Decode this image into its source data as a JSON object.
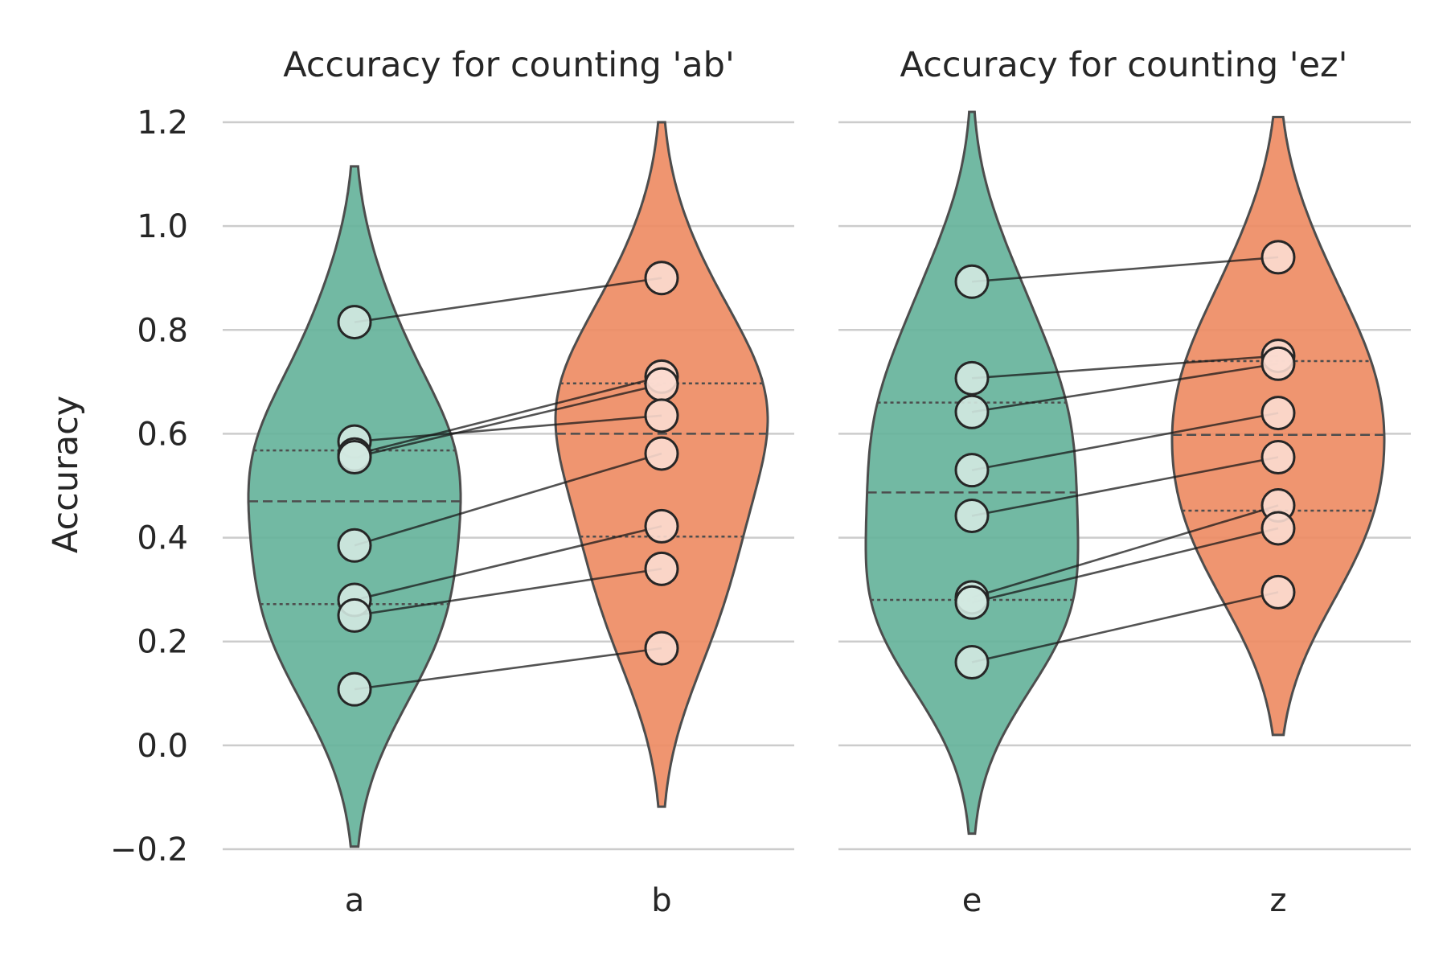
{
  "chart_data": {
    "type": "violin",
    "ylabel": "Accuracy",
    "ylim": [
      -0.2,
      1.2
    ],
    "yticks": [
      -0.2,
      0.0,
      0.2,
      0.4,
      0.6,
      0.8,
      1.0,
      1.2
    ],
    "ytick_labels": [
      "−0.2",
      "0.0",
      "0.2",
      "0.4",
      "0.6",
      "0.8",
      "1.0",
      "1.2"
    ],
    "grid": "horizontal",
    "colors": {
      "left_violin": "#66b39b",
      "right_violin": "#ee8c64",
      "left_point": "#d3e9e1",
      "right_point": "#fbdcd0"
    },
    "panels": [
      {
        "title": "Accuracy for counting 'ab'",
        "categories": [
          "a",
          "b"
        ],
        "series": [
          {
            "category": "a",
            "values": [
              0.815,
              0.585,
              0.56,
              0.555,
              0.385,
              0.28,
              0.25,
              0.108
            ],
            "median": 0.47,
            "q1": 0.272,
            "q3": 0.568,
            "kde_range": [
              -0.195,
              1.115
            ]
          },
          {
            "category": "b",
            "values": [
              0.9,
              0.71,
              0.695,
              0.635,
              0.562,
              0.422,
              0.34,
              0.187
            ],
            "median": 0.6,
            "q1": 0.402,
            "q3": 0.697,
            "kde_range": [
              -0.118,
              1.2
            ]
          }
        ],
        "pairs": [
          [
            0.815,
            0.9
          ],
          [
            0.585,
            0.635
          ],
          [
            0.56,
            0.71
          ],
          [
            0.555,
            0.695
          ],
          [
            0.385,
            0.562
          ],
          [
            0.28,
            0.422
          ],
          [
            0.25,
            0.34
          ],
          [
            0.108,
            0.187
          ]
        ]
      },
      {
        "title": "Accuracy for counting 'ez'",
        "categories": [
          "e",
          "z"
        ],
        "series": [
          {
            "category": "e",
            "values": [
              0.893,
              0.707,
              0.642,
              0.53,
              0.442,
              0.285,
              0.275,
              0.16
            ],
            "median": 0.487,
            "q1": 0.28,
            "q3": 0.66,
            "kde_range": [
              -0.17,
              1.22
            ]
          },
          {
            "category": "z",
            "values": [
              0.94,
              0.75,
              0.735,
              0.64,
              0.555,
              0.462,
              0.418,
              0.295
            ],
            "median": 0.598,
            "q1": 0.452,
            "q3": 0.74,
            "kde_range": [
              0.02,
              1.21
            ]
          }
        ],
        "pairs": [
          [
            0.893,
            0.94
          ],
          [
            0.707,
            0.75
          ],
          [
            0.642,
            0.735
          ],
          [
            0.53,
            0.64
          ],
          [
            0.442,
            0.555
          ],
          [
            0.285,
            0.462
          ],
          [
            0.275,
            0.418
          ],
          [
            0.16,
            0.295
          ]
        ]
      }
    ]
  }
}
